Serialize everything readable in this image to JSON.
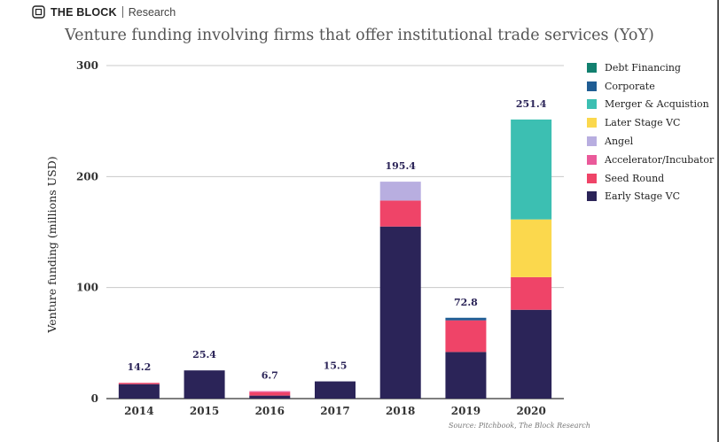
{
  "brand": {
    "name": "THE BLOCK",
    "sub": "Research"
  },
  "source": "Source: Pitchbook, The Block Research",
  "colors": {
    "Debt Financing": "#12806f",
    "Corporate": "#1f5d94",
    "Merger & Acquistion": "#3cbfb2",
    "Later Stage VC": "#fbd84d",
    "Angel": "#b8aee0",
    "Accelerator/Incubator": "#ea5a9a",
    "Seed Round": "#ef4468",
    "Early Stage VC": "#2b2458"
  },
  "chart_data": {
    "type": "bar",
    "stacked": true,
    "title": "Venture funding involving firms that offer institutional trade services (YoY)",
    "xlabel": "",
    "ylabel": "Venture funding (millions USD)",
    "ylim": [
      0,
      300
    ],
    "yticks": [
      0,
      100,
      200,
      300
    ],
    "grid": true,
    "legend_position": "right",
    "categories": [
      "2014",
      "2015",
      "2016",
      "2017",
      "2018",
      "2019",
      "2020"
    ],
    "series": [
      {
        "name": "Early Stage VC",
        "values": [
          13.0,
          25.4,
          2.7,
          15.5,
          155.0,
          42.0,
          80.0
        ]
      },
      {
        "name": "Seed Round",
        "values": [
          1.2,
          0,
          3.0,
          0,
          23.4,
          28.5,
          29.4
        ]
      },
      {
        "name": "Accelerator/Incubator",
        "values": [
          0,
          0,
          1.0,
          0,
          0,
          0,
          0
        ]
      },
      {
        "name": "Angel",
        "values": [
          0,
          0,
          0,
          0,
          17.0,
          0,
          0
        ]
      },
      {
        "name": "Later Stage VC",
        "values": [
          0,
          0,
          0,
          0,
          0,
          0,
          52.0
        ]
      },
      {
        "name": "Merger & Acquistion",
        "values": [
          0,
          0,
          0,
          0,
          0,
          0,
          90.0
        ]
      },
      {
        "name": "Corporate",
        "values": [
          0,
          0,
          0,
          0,
          0,
          2.3,
          0
        ]
      },
      {
        "name": "Debt Financing",
        "values": [
          0,
          0,
          0,
          0,
          0,
          0,
          0
        ]
      }
    ],
    "totals": [
      "14.2",
      "25.4",
      "6.7",
      "15.5",
      "195.4",
      "72.8",
      "251.4"
    ],
    "legend": [
      "Debt Financing",
      "Corporate",
      "Merger & Acquistion",
      "Later Stage VC",
      "Angel",
      "Accelerator/Incubator",
      "Seed Round",
      "Early Stage VC"
    ]
  }
}
